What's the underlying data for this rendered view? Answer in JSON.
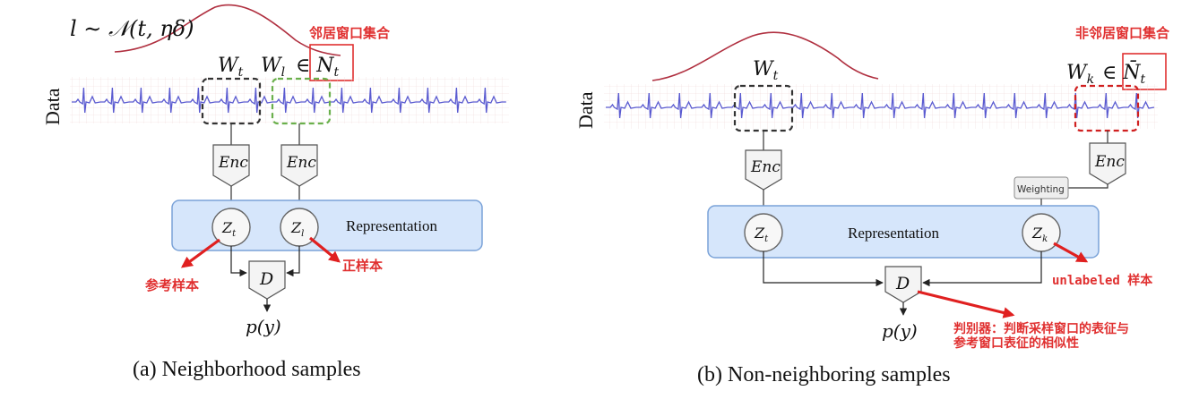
{
  "panel_a": {
    "distribution_label": "l ∼ 𝒩(t, ηδ)",
    "data_label": "Data",
    "window_target": "W",
    "window_target_sub": "t",
    "window_neighbor": "W",
    "window_neighbor_sub": "l",
    "neighbor_set": "∈ N",
    "neighbor_set_sub": "t",
    "annotation_neighbor_set": "邻居窗口集合",
    "encoder_1": "Enc",
    "encoder_2": "Enc",
    "representation_label": "Representation",
    "z_target": "Z",
    "z_target_sub": "t",
    "z_neighbor": "Z",
    "z_neighbor_sub": "l",
    "discriminator": "D",
    "output": "p(y)",
    "annotation_reference": "参考样本",
    "annotation_positive": "正样本",
    "caption": "(a) Neighborhood samples"
  },
  "panel_b": {
    "data_label": "Data",
    "window_target": "W",
    "window_target_sub": "t",
    "window_nonneighbor": "W",
    "window_nonneighbor_sub": "k",
    "nonneighbor_set": "∈ N̄",
    "nonneighbor_set_sub": "t",
    "annotation_nonneighbor_set": "非邻居窗口集合",
    "encoder_1": "Enc",
    "encoder_2": "Enc",
    "weighting": "Weighting",
    "representation_label": "Representation",
    "z_target": "Z",
    "z_target_sub": "t",
    "z_nonneighbor": "Z",
    "z_nonneighbor_sub": "k",
    "discriminator": "D",
    "output": "p(y)",
    "annotation_unlabeled": "unlabeled 样本",
    "annotation_discriminator_line1": "判别器：判断采样窗口的表征与",
    "annotation_discriminator_line2": "参考窗口表征的相似性",
    "caption": "(b) Non-neighboring samples"
  },
  "colors": {
    "signal": "#5a5ad0",
    "gaussian": "#b03040",
    "annotation": "#e03030",
    "representation_fill": "#d6e6fb",
    "representation_stroke": "#7aa2d8",
    "target_window": "#333333",
    "neighbor_window": "#6ab04c",
    "nonneighbor_window": "#d02020"
  }
}
